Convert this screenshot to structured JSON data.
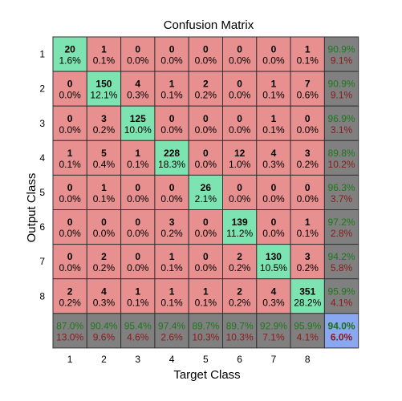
{
  "chart_data": {
    "type": "heatmap",
    "title": "Confusion Matrix",
    "xlabel": "Target Class",
    "ylabel": "Output Class",
    "x_ticks": [
      "1",
      "2",
      "3",
      "4",
      "5",
      "6",
      "7",
      "8"
    ],
    "y_ticks": [
      "1",
      "2",
      "3",
      "4",
      "5",
      "6",
      "7",
      "8"
    ],
    "counts": [
      [
        20,
        1,
        0,
        0,
        0,
        0,
        0,
        1
      ],
      [
        0,
        150,
        4,
        1,
        2,
        0,
        1,
        7
      ],
      [
        0,
        3,
        125,
        0,
        0,
        0,
        1,
        0
      ],
      [
        1,
        5,
        1,
        228,
        0,
        12,
        4,
        3
      ],
      [
        0,
        1,
        0,
        0,
        26,
        0,
        0,
        0
      ],
      [
        0,
        0,
        0,
        3,
        0,
        139,
        0,
        1
      ],
      [
        0,
        2,
        0,
        1,
        0,
        2,
        130,
        3
      ],
      [
        2,
        4,
        1,
        1,
        1,
        2,
        4,
        351
      ]
    ],
    "percentages": [
      [
        "1.6%",
        "0.1%",
        "0.0%",
        "0.0%",
        "0.0%",
        "0.0%",
        "0.0%",
        "0.1%"
      ],
      [
        "0.0%",
        "12.1%",
        "0.3%",
        "0.1%",
        "0.2%",
        "0.0%",
        "0.1%",
        "0.6%"
      ],
      [
        "0.0%",
        "0.2%",
        "10.0%",
        "0.0%",
        "0.0%",
        "0.0%",
        "0.1%",
        "0.0%"
      ],
      [
        "0.1%",
        "0.4%",
        "0.1%",
        "18.3%",
        "0.0%",
        "1.0%",
        "0.3%",
        "0.2%"
      ],
      [
        "0.0%",
        "0.1%",
        "0.0%",
        "0.0%",
        "2.1%",
        "0.0%",
        "0.0%",
        "0.0%"
      ],
      [
        "0.0%",
        "0.0%",
        "0.0%",
        "0.2%",
        "0.0%",
        "11.2%",
        "0.0%",
        "0.1%"
      ],
      [
        "0.0%",
        "0.2%",
        "0.0%",
        "0.1%",
        "0.0%",
        "0.2%",
        "10.5%",
        "0.2%"
      ],
      [
        "0.2%",
        "0.3%",
        "0.1%",
        "0.1%",
        "0.1%",
        "0.2%",
        "0.3%",
        "28.2%"
      ]
    ],
    "row_summary": [
      [
        "90.9%",
        "9.1%"
      ],
      [
        "90.9%",
        "9.1%"
      ],
      [
        "96.9%",
        "3.1%"
      ],
      [
        "89.8%",
        "10.2%"
      ],
      [
        "96.3%",
        "3.7%"
      ],
      [
        "97.2%",
        "2.8%"
      ],
      [
        "94.2%",
        "5.8%"
      ],
      [
        "95.9%",
        "4.1%"
      ]
    ],
    "col_summary": [
      [
        "87.0%",
        "13.0%"
      ],
      [
        "90.4%",
        "9.6%"
      ],
      [
        "95.4%",
        "4.6%"
      ],
      [
        "97.4%",
        "2.6%"
      ],
      [
        "89.7%",
        "10.3%"
      ],
      [
        "89.7%",
        "10.3%"
      ],
      [
        "92.9%",
        "7.1%"
      ],
      [
        "95.9%",
        "4.1%"
      ]
    ],
    "overall": [
      "94.0%",
      "6.0%"
    ],
    "colors": {
      "diagonal": "#7de3b0",
      "off_diagonal": "#e89090",
      "summary": "#808080",
      "overall": "#8aa8f0",
      "grid": "#333333",
      "accuracy_text": "#1a7a1a",
      "error_text": "#8a1a1a"
    }
  }
}
